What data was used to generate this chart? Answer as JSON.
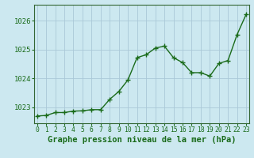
{
  "x": [
    0,
    1,
    2,
    3,
    4,
    5,
    6,
    7,
    8,
    9,
    10,
    11,
    12,
    13,
    14,
    15,
    16,
    17,
    18,
    19,
    20,
    21,
    22,
    23
  ],
  "y": [
    1022.7,
    1022.72,
    1022.82,
    1022.82,
    1022.87,
    1022.88,
    1022.92,
    1022.92,
    1023.28,
    1023.55,
    1023.95,
    1024.72,
    1024.82,
    1025.05,
    1025.12,
    1024.72,
    1024.55,
    1024.2,
    1024.2,
    1024.08,
    1024.52,
    1024.62,
    1025.52,
    1026.22
  ],
  "line_color": "#1a6b1a",
  "marker": "+",
  "marker_size": 4,
  "marker_linewidth": 1.0,
  "bg_color": "#cce8f0",
  "grid_color": "#aac8d8",
  "xlabel": "Graphe pression niveau de la mer (hPa)",
  "xlabel_fontsize": 7.5,
  "yticks": [
    1023,
    1024,
    1025,
    1026
  ],
  "xticks": [
    0,
    1,
    2,
    3,
    4,
    5,
    6,
    7,
    8,
    9,
    10,
    11,
    12,
    13,
    14,
    15,
    16,
    17,
    18,
    19,
    20,
    21,
    22,
    23
  ],
  "ylim": [
    1022.45,
    1026.55
  ],
  "xlim": [
    -0.3,
    23.3
  ],
  "tick_color": "#1a6b1a",
  "ytick_fontsize": 6.5,
  "xtick_fontsize": 5.8,
  "linewidth": 1.0,
  "spine_color": "#336633"
}
